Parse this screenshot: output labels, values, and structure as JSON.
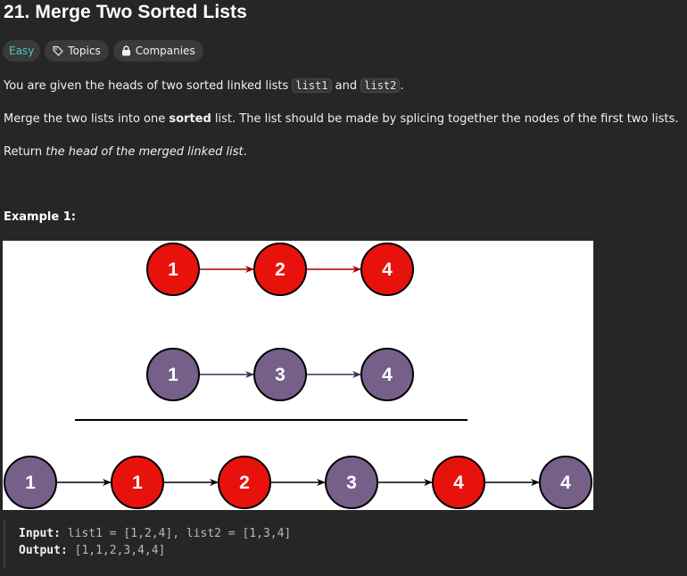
{
  "problem": {
    "title": "21. Merge Two Sorted Lists",
    "difficulty": "Easy",
    "topics_label": "Topics",
    "companies_label": "Companies"
  },
  "description": {
    "p1_pre": "You are given the heads of two sorted linked lists ",
    "p1_code1": "list1",
    "p1_mid": " and ",
    "p1_code2": "list2",
    "p1_post": ".",
    "p2_pre": "Merge the two lists into one ",
    "p2_bold": "sorted",
    "p2_post": " list. The list should be made by splicing together the nodes of the first two lists.",
    "p3_pre": "Return ",
    "p3_em": "the head of the merged linked list",
    "p3_post": "."
  },
  "example": {
    "title": "Example 1:",
    "input_label": "Input:",
    "input_value": "list1 = [1,2,4], list2 = [1,3,4]",
    "output_label": "Output:",
    "output_value": "[1,1,2,3,4,4]"
  },
  "diagram": {
    "list1": [
      "1",
      "2",
      "4"
    ],
    "list2": [
      "1",
      "3",
      "4"
    ],
    "merged": [
      {
        "value": "1",
        "from": "list2"
      },
      {
        "value": "1",
        "from": "list1"
      },
      {
        "value": "2",
        "from": "list1"
      },
      {
        "value": "3",
        "from": "list2"
      },
      {
        "value": "4",
        "from": "list1"
      },
      {
        "value": "4",
        "from": "list2"
      }
    ],
    "colors": {
      "list1_fill": "#e8120c",
      "list2_fill": "#76608a",
      "list1_arrow": "#a50000",
      "list2_arrow": "#432d57",
      "merged_arrow": "#000000"
    }
  }
}
